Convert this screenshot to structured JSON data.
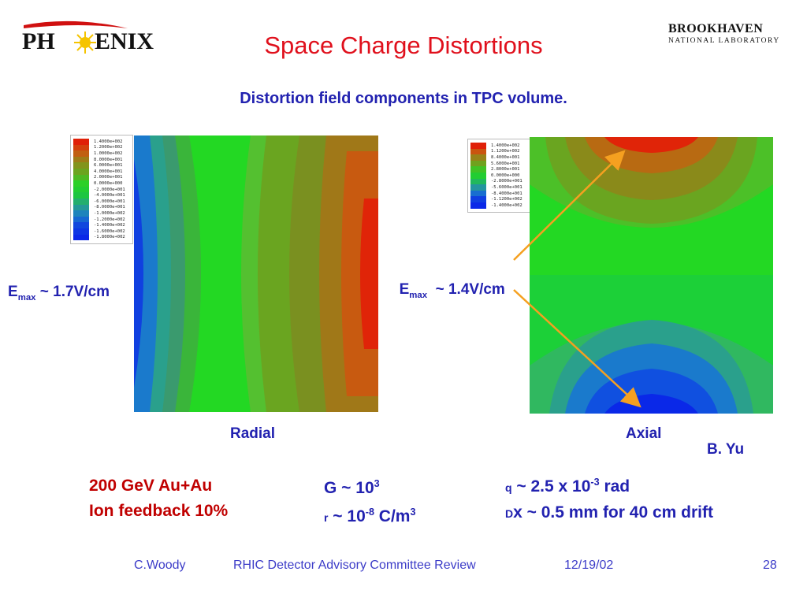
{
  "slide": {
    "title": "Space Charge Distortions",
    "subtitle": "Distortion field components in TPC volume."
  },
  "logos": {
    "phenix_left": "PH",
    "phenix_right": "ENIX",
    "bnl_line1": "BROOKHAVEN",
    "bnl_line2": "NATIONAL LABORATORY"
  },
  "colors": {
    "title": "#e0101c",
    "blue_text": "#2222b0",
    "red_text": "#c00000",
    "arrow": "#f5a020"
  },
  "radial": {
    "legend": [
      "1.4000e+002",
      "1.2000e+002",
      "1.0000e+002",
      "8.0000e+001",
      "6.0000e+001",
      "4.0000e+001",
      "2.0000e+001",
      "0.0000e+000",
      "-2.0000e+001",
      "-4.0000e+001",
      "-6.0000e+001",
      "-8.0000e+001",
      "-1.0000e+002",
      "-1.2000e+002",
      "-1.4000e+002",
      "-1.6000e+002",
      "-1.8000e+002"
    ],
    "emax_prefix": "E",
    "emax_sub": "max",
    "emax_value": " ~ 1.7V/cm",
    "label": "Radial"
  },
  "axial": {
    "legend": [
      "1.4000e+002",
      "1.1200e+002",
      "8.4000e+001",
      "5.6000e+001",
      "2.8000e+001",
      "0.0000e+000",
      "-2.8000e+001",
      "-5.6000e+001",
      "-8.4000e+001",
      "-1.1200e+002",
      "-1.4000e+002"
    ],
    "emax_prefix": "E",
    "emax_sub": "max",
    "emax_value": "  ~ 1.4V/cm",
    "label": "Axial",
    "author": "B. Yu"
  },
  "notes": {
    "beam_line1": "200 GeV Au+Au",
    "beam_line2": "Ion feedback 10%",
    "gain_prefix": "G ~ 10",
    "gain_exp": "3",
    "rho_symbol": "r",
    "rho_prefix": " ~ 10",
    "rho_exp": "-8",
    "rho_unit": " C/m",
    "rho_unit_exp": "3",
    "theta_symbol": "q",
    "theta_prefix": " ~ 2.5 x 10",
    "theta_exp": "-3",
    "theta_unit": " rad",
    "dx_symbol": "D",
    "dx_text": "x ~ 0.5 mm for 40 cm drift"
  },
  "footer": {
    "author": "C.Woody",
    "event": "RHIC Detector Advisory Committee Review",
    "date": "12/19/02",
    "page": "28"
  }
}
